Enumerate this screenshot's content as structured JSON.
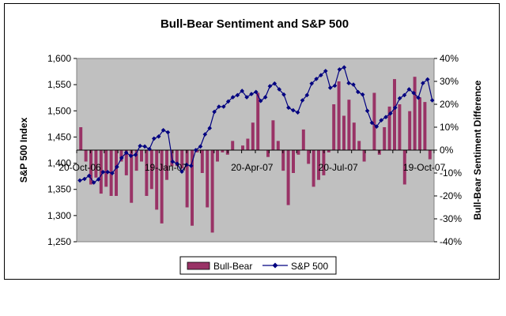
{
  "chart_data": {
    "type": "bar+line",
    "title": "Bull-Bear Sentiment and S&P 500",
    "ylabel_left": "S&P 500 Index",
    "ylabel_right": "Bull-Bear Sentiment Difference",
    "ylim_left": [
      1250,
      1600
    ],
    "yticks_left": [
      "1,250",
      "1,300",
      "1,350",
      "1,400",
      "1,450",
      "1,500",
      "1,550",
      "1,600"
    ],
    "ylim_right": [
      -40,
      40
    ],
    "yticks_right": [
      "-40%",
      "-30%",
      "-20%",
      "-10%",
      "0%",
      "10%",
      "20%",
      "30%",
      "40%"
    ],
    "x_tick_labels": [
      {
        "label": "20-Oct-06",
        "index": 0
      },
      {
        "label": "19-Jan-07",
        "index": 13
      },
      {
        "label": "20-Apr-07",
        "index": 26
      },
      {
        "label": "20-Jul-07",
        "index": 39
      },
      {
        "label": "19-Oct-07",
        "index": 52
      }
    ],
    "grid": false,
    "legend_placement": "bottom",
    "colors": {
      "plot_bg": "#c0c0c0",
      "bar_fill": "#993366",
      "line": "#000080"
    },
    "series": [
      {
        "name": "Bull-Bear",
        "type": "bar",
        "axis": "right",
        "unit": "%",
        "values": [
          10,
          -5,
          -15,
          -12,
          -19,
          -16,
          -20,
          -20,
          -5,
          -11,
          -23,
          -9,
          -5,
          -20,
          -17,
          -26,
          -32,
          -13,
          -7,
          -7,
          -8,
          -25,
          -33,
          -1,
          -10,
          -25,
          -36,
          -5,
          -1,
          -2,
          4,
          0,
          2,
          5,
          12,
          25,
          0,
          -3,
          13,
          4,
          -9,
          -24,
          -10,
          -2,
          9,
          -6,
          -16,
          -13,
          -11,
          -1,
          20,
          30,
          15,
          22,
          12,
          4,
          -5,
          0,
          25,
          -2,
          10,
          19,
          31,
          20,
          -15,
          17,
          32,
          23,
          21,
          -4
        ],
        "values_note": "approximate"
      },
      {
        "name": "S&P 500",
        "type": "line",
        "axis": "left",
        "x": [
          0,
          0.7,
          1.4,
          2.1,
          2.8,
          3.5,
          4.2,
          4.9,
          5.6,
          6.3,
          7,
          7.7,
          8.4,
          9.1,
          9.8,
          10.5,
          11.2,
          11.9,
          12.6,
          13.3,
          14,
          14.7,
          15.4,
          16.1,
          16.8,
          17.5,
          18.2,
          18.9,
          19.6,
          20.3,
          21,
          21.7,
          22.4,
          23.1,
          23.8,
          24.5,
          25.2,
          25.9,
          26.6,
          27.3,
          28,
          28.7,
          29.4,
          30.1,
          30.8,
          31.5,
          32.2,
          32.9,
          33.6,
          34.3,
          35,
          35.7,
          36.4,
          37.1,
          37.8,
          38.5,
          39.2,
          39.9,
          40.6,
          41.3,
          42,
          42.7,
          43.4,
          44.1,
          44.8,
          45.5,
          46.2,
          46.9,
          47.6,
          48.3,
          49,
          49.7,
          50.4,
          51.1,
          51.8,
          52.5,
          53.2
        ],
        "values": [
          1367,
          1370,
          1376,
          1363,
          1369,
          1383,
          1383,
          1381,
          1393,
          1410,
          1420,
          1414,
          1416,
          1433,
          1432,
          1427,
          1447,
          1451,
          1463,
          1459,
          1403,
          1399,
          1384,
          1397,
          1395,
          1425,
          1432,
          1455,
          1467,
          1498,
          1508,
          1508,
          1518,
          1526,
          1530,
          1538,
          1526,
          1532,
          1536,
          1519,
          1526,
          1547,
          1552,
          1541,
          1531,
          1506,
          1501,
          1497,
          1520,
          1530,
          1552,
          1561,
          1568,
          1576,
          1544,
          1548,
          1579,
          1583,
          1553,
          1550,
          1536,
          1531,
          1500,
          1477,
          1470,
          1482,
          1488,
          1495,
          1506,
          1524,
          1530,
          1541,
          1534,
          1525,
          1553,
          1560,
          1520
        ],
        "values_note": "approximate"
      }
    ]
  }
}
